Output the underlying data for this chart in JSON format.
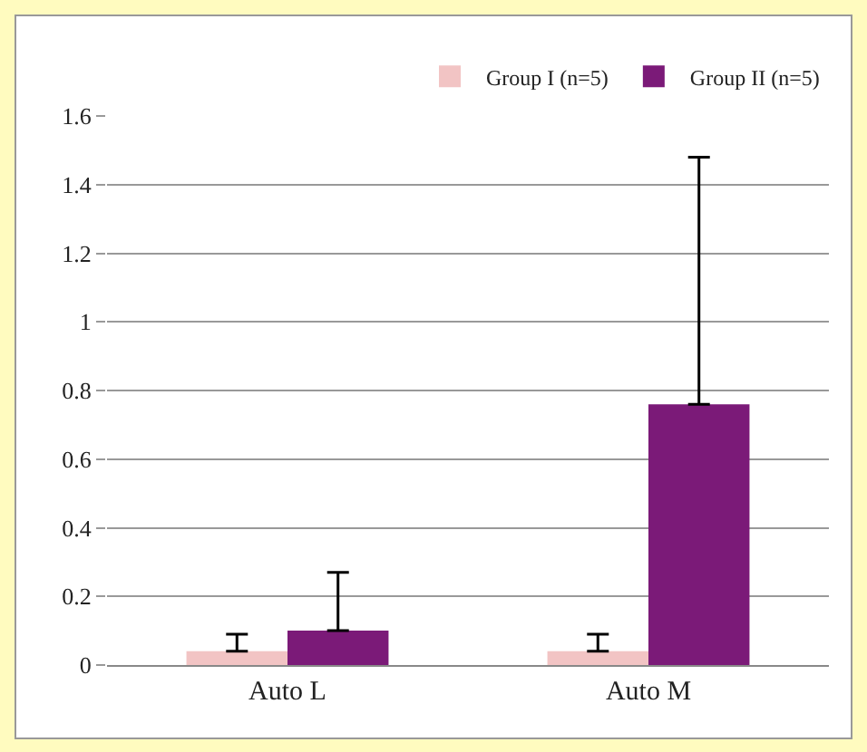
{
  "chart_data": {
    "type": "bar",
    "categories": [
      "Auto L",
      "Auto M"
    ],
    "series": [
      {
        "name": "Group I (n=5)",
        "color": "#f2c4c4",
        "values": [
          0.04,
          0.04
        ],
        "errors": [
          [
            0.04,
            0.09
          ],
          [
            0.04,
            0.09
          ]
        ]
      },
      {
        "name": "Group II (n=5)",
        "color": "#7b1a78",
        "values": [
          0.1,
          0.76
        ],
        "errors": [
          [
            0.1,
            0.27
          ],
          [
            0.76,
            1.48
          ]
        ]
      }
    ],
    "ylim": [
      0,
      1.6
    ],
    "yticks": [
      0,
      0.2,
      0.4,
      0.6,
      0.8,
      1,
      1.2,
      1.4,
      1.6
    ],
    "grid": "y",
    "legend": "top right"
  }
}
